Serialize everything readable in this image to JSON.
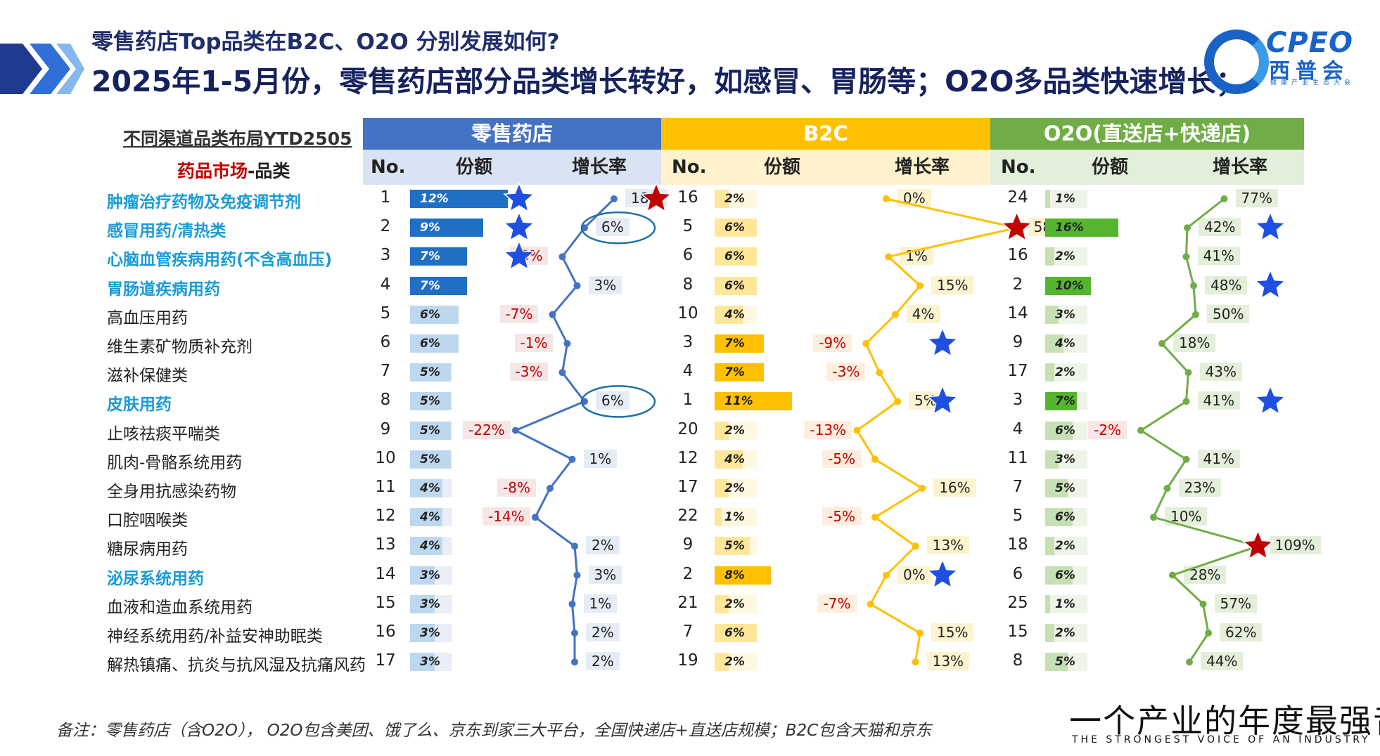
{
  "header": {
    "subtitle": "零售药店Top品类在B2C、O2O 分别发展如何?",
    "title": "2025年1-5月份，零售药店部分品类增长转好，如感冒、胃肠等；O2O多品类快速增长；"
  },
  "logo": {
    "text": "CPEO",
    "cn": "西普会",
    "sub": "健康产业生态大会"
  },
  "table": {
    "layout_title": "不同渠道品类布局YTD2505",
    "market_title_red": "药品市场",
    "market_title_dark": "-品类",
    "col_no": "No.",
    "col_share": "份额",
    "col_growth": "增长率"
  },
  "footer": {
    "note": "备注：零售药店（含O2O）， O2O包含美团、饿了么、京东到家三大平台，全国快递店+直送店规模；B2C包含天猫和京东",
    "slogan_cn": "一个产业的年度最强音",
    "slogan_en": "THE STRONGEST VOICE OF AN INDUSTRY"
  },
  "colors": {
    "retail": "#4472c4",
    "retail_sub": "#dae3f3",
    "retail_bar": "#1f6fc5",
    "retail_bar_light": "#bdd7ee",
    "b2c": "#ffc000",
    "b2c_sub": "#fff2cc",
    "b2c_bar": "#ffc000",
    "b2c_bar_light": "#ffe699",
    "o2o": "#70ad47",
    "o2o_sub": "#e2efda",
    "o2o_bar": "#55b52f",
    "o2o_bar_light": "#c6e0b4",
    "star_blue": "#1f4fe0",
    "star_red": "#c00000",
    "highlight_label": "#1b9bd7"
  },
  "chart_data": {
    "type": "table",
    "title": "不同渠道品类布局YTD2505",
    "categories": [
      "肿瘤治疗药物及免疫调节剂",
      "感冒用药/清热类",
      "心脑血管疾病用药(不含高血压)",
      "胃肠道疾病用药",
      "高血压用药",
      "维生素矿物质补充剂",
      "滋补保健类",
      "皮肤用药",
      "止咳祛痰平喘类",
      "肌肉-骨骼系统用药",
      "全身用抗感染药物",
      "口腔咽喉类",
      "糖尿病用药",
      "泌尿系统用药",
      "血液和造血系统用药",
      "神经系统用药/补益安神助眠类",
      "解热镇痛、抗炎与抗风湿及抗痛风药"
    ],
    "highlighted": [
      0,
      1,
      2,
      3,
      7,
      13
    ],
    "series": [
      {
        "name": "零售药店",
        "rank": [
          1,
          2,
          3,
          4,
          5,
          6,
          7,
          8,
          9,
          10,
          11,
          12,
          13,
          14,
          15,
          16,
          17
        ],
        "share": [
          12,
          9,
          7,
          7,
          6,
          6,
          5,
          5,
          5,
          5,
          4,
          4,
          4,
          3,
          3,
          3,
          3
        ],
        "growth": [
          18,
          6,
          -3,
          3,
          -7,
          -1,
          -3,
          6,
          -22,
          1,
          -8,
          -14,
          2,
          3,
          1,
          2,
          2
        ],
        "blue_stars": [
          0,
          1,
          2
        ],
        "red_stars": [
          0
        ],
        "circled": [
          1,
          7
        ]
      },
      {
        "name": "B2C",
        "rank": [
          16,
          5,
          6,
          8,
          10,
          3,
          4,
          1,
          20,
          12,
          17,
          22,
          9,
          2,
          21,
          7,
          19
        ],
        "share": [
          2,
          6,
          6,
          6,
          4,
          7,
          7,
          11,
          2,
          4,
          2,
          1,
          5,
          8,
          2,
          6,
          2
        ],
        "growth": [
          0,
          58,
          1,
          15,
          4,
          -9,
          -3,
          5,
          -13,
          -5,
          16,
          -5,
          13,
          0,
          -7,
          15,
          13
        ],
        "blue_stars": [
          5,
          7,
          13
        ],
        "red_stars": [
          1
        ]
      },
      {
        "name": "O2O(直送店+快递店)",
        "rank": [
          24,
          1,
          16,
          2,
          14,
          9,
          17,
          3,
          4,
          11,
          7,
          5,
          18,
          6,
          25,
          15,
          8
        ],
        "share": [
          1,
          16,
          2,
          10,
          3,
          4,
          2,
          7,
          6,
          3,
          5,
          6,
          2,
          6,
          1,
          2,
          5
        ],
        "growth": [
          77,
          42,
          41,
          48,
          50,
          18,
          43,
          41,
          -2,
          41,
          23,
          10,
          109,
          28,
          57,
          62,
          44
        ],
        "blue_stars": [
          1,
          3,
          7
        ],
        "red_stars": [
          12
        ]
      }
    ]
  }
}
